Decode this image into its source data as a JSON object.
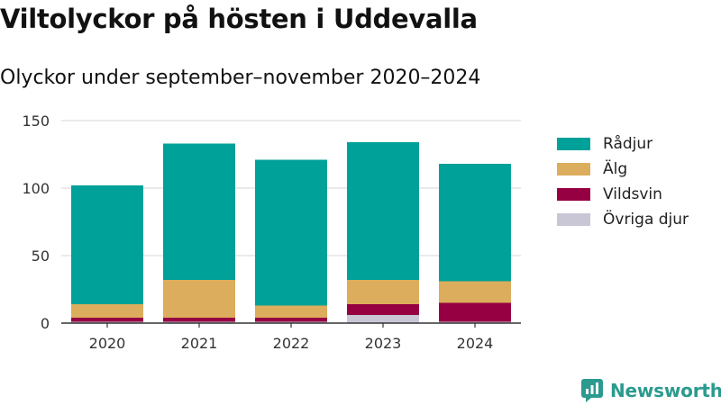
{
  "title": "Viltolyckor på hösten i Uddevalla",
  "subtitle": "Olyckor under september–november 2020–2024",
  "brand": {
    "name": "Newsworthy",
    "icon": "newsworthy-logo-icon"
  },
  "chart_data": {
    "type": "bar",
    "stacked": true,
    "categories": [
      "2020",
      "2021",
      "2022",
      "2023",
      "2024"
    ],
    "series": [
      {
        "name": "Övriga djur",
        "color": "#c9c7d6",
        "values": [
          1,
          1,
          1,
          6,
          1
        ]
      },
      {
        "name": "Vildsvin",
        "color": "#960042",
        "values": [
          3,
          3,
          3,
          8,
          14
        ]
      },
      {
        "name": "Älg",
        "color": "#dcad5c",
        "values": [
          10,
          28,
          9,
          18,
          16
        ]
      },
      {
        "name": "Rådjur",
        "color": "#00a199",
        "values": [
          88,
          101,
          108,
          102,
          87
        ]
      }
    ],
    "legend_order": [
      "Rådjur",
      "Älg",
      "Vildsvin",
      "Övriga djur"
    ],
    "y_ticks": [
      0,
      50,
      100,
      150
    ],
    "ylim": [
      0,
      150
    ],
    "xlabel": "",
    "ylabel": "",
    "grid": true,
    "legend_position": "right"
  }
}
